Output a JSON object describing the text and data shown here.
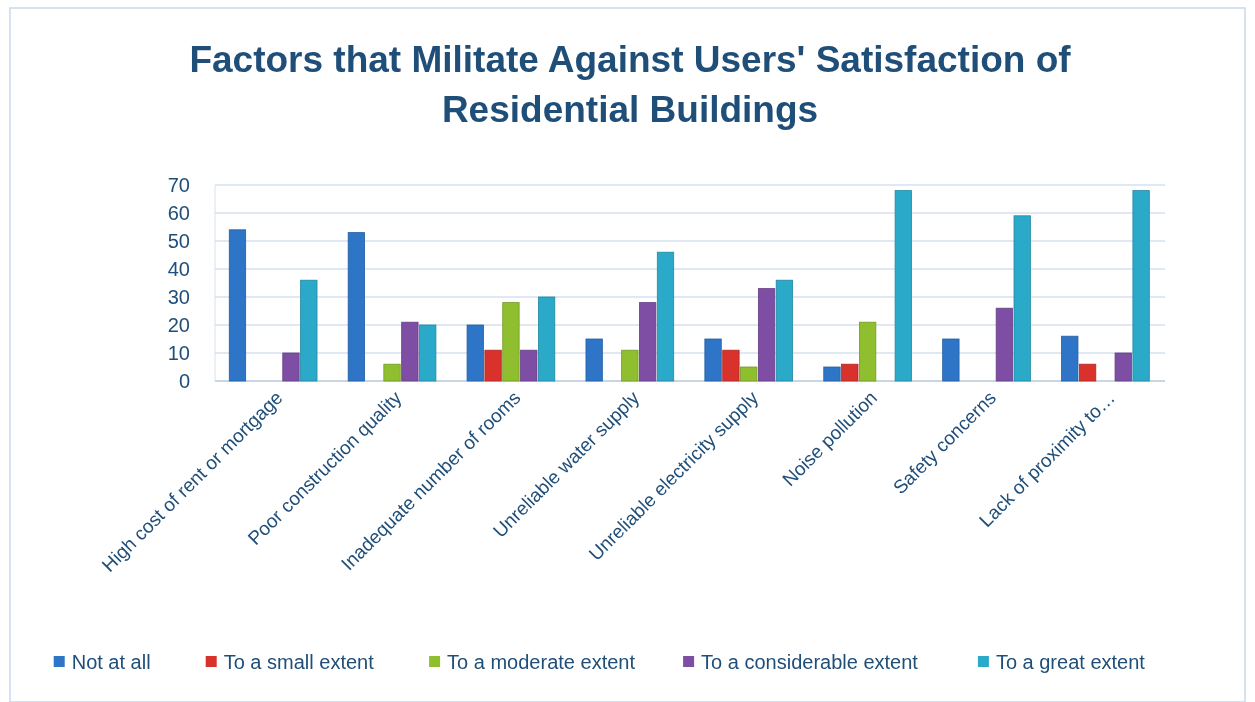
{
  "chart_data": {
    "type": "bar",
    "title": "Factors that Militate Against Users' Satisfaction of Residential Buildings",
    "categories": [
      "High cost of rent or mortgage",
      "Poor construction quality",
      "Inadequate number of rooms",
      "Unreliable water supply",
      "Unreliable electricity supply",
      "Noise pollution",
      "Safety concerns",
      "Lack of proximity to…"
    ],
    "series": [
      {
        "name": "Not at all",
        "color": "#2e75c8",
        "values": [
          54,
          53,
          20,
          15,
          15,
          5,
          15,
          16
        ]
      },
      {
        "name": "To a small extent",
        "color": "#d9312b",
        "values": [
          0,
          0,
          11,
          0,
          11,
          6,
          0,
          6
        ]
      },
      {
        "name": "To a moderate extent",
        "color": "#8fbf2f",
        "values": [
          0,
          6,
          28,
          11,
          5,
          21,
          0,
          0
        ]
      },
      {
        "name": "To a considerable extent",
        "color": "#7d4ea3",
        "values": [
          10,
          21,
          11,
          28,
          33,
          0,
          26,
          10
        ]
      },
      {
        "name": "To a great extent",
        "color": "#2aa9c9",
        "values": [
          36,
          20,
          30,
          46,
          36,
          68,
          59,
          68
        ]
      }
    ],
    "ylim": [
      0,
      70
    ],
    "yticks": [
      0,
      10,
      20,
      30,
      40,
      50,
      60,
      70
    ],
    "grid": "y",
    "legend": "bottom"
  }
}
